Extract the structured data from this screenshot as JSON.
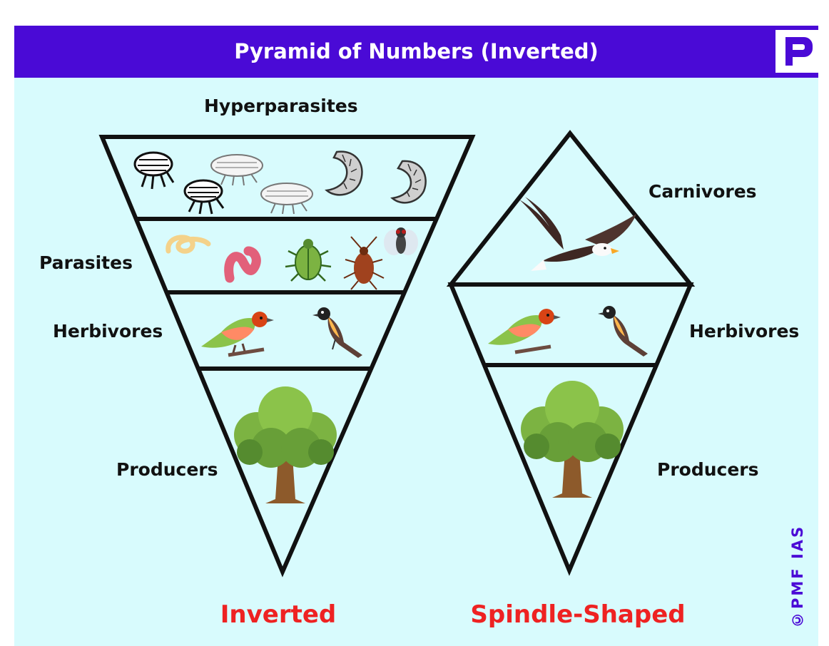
{
  "header": {
    "title": "Pyramid of Numbers (Inverted)",
    "logo": "pmf-logo-icon"
  },
  "inverted": {
    "levels": [
      {
        "label": "Hyperparasites",
        "organisms": [
          "flea-icon",
          "flea-icon",
          "louse-icon",
          "louse-icon",
          "grub-icon",
          "grub-icon"
        ]
      },
      {
        "label": "Parasites",
        "organisms": [
          "roundworm-icon",
          "earthworm-icon",
          "beetle-icon",
          "cockroach-icon",
          "fly-icon"
        ]
      },
      {
        "label": "Herbivores",
        "organisms": [
          "finch-icon",
          "sparrow-icon"
        ]
      },
      {
        "label": "Producers",
        "organisms": [
          "tree-icon"
        ]
      }
    ],
    "caption": "Inverted"
  },
  "spindle": {
    "levels": [
      {
        "label": "Carnivores",
        "organisms": [
          "eagle-icon"
        ]
      },
      {
        "label": "Herbivores",
        "organisms": [
          "finch-icon",
          "sparrow-icon"
        ]
      },
      {
        "label": "Producers",
        "organisms": [
          "tree-icon"
        ]
      }
    ],
    "caption": "Spindle-Shaped"
  },
  "watermark": "©PMF IAS",
  "colors": {
    "header_bg": "#4a0ad6",
    "panel_bg": "#d8fbfd",
    "caption": "#ee2222",
    "outline": "#111111"
  }
}
